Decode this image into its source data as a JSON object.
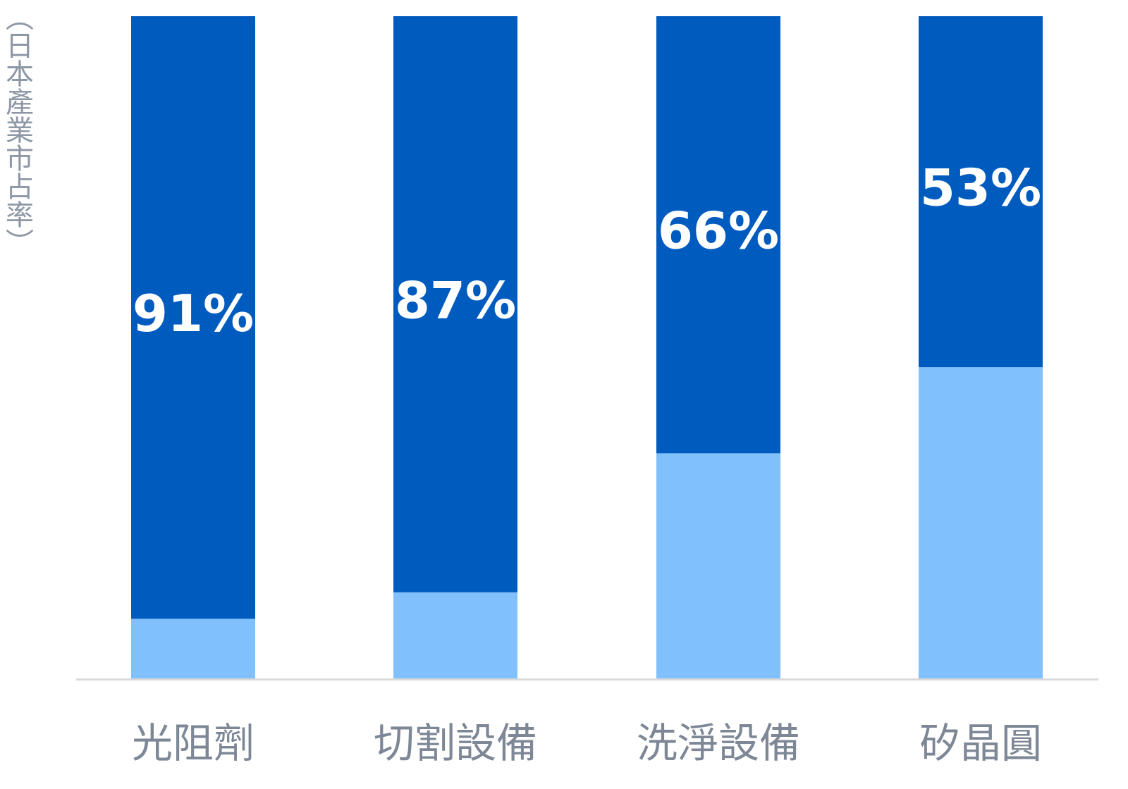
{
  "chart_data": {
    "type": "stacked_bar",
    "y_label": "（日本產業市占率）",
    "categories": [
      "光阻劑",
      "切割設備",
      "洗淨設備",
      "矽晶圓"
    ],
    "series": [
      {
        "color": "#80c1fd",
        "values": [
          9,
          13,
          34,
          47
        ]
      },
      {
        "color": "#005bbf",
        "values": [
          91,
          87,
          66,
          53
        ],
        "value_labels": [
          "91%",
          "87%",
          "66%",
          "53%"
        ]
      }
    ],
    "ylim": [
      0,
      100
    ]
  }
}
